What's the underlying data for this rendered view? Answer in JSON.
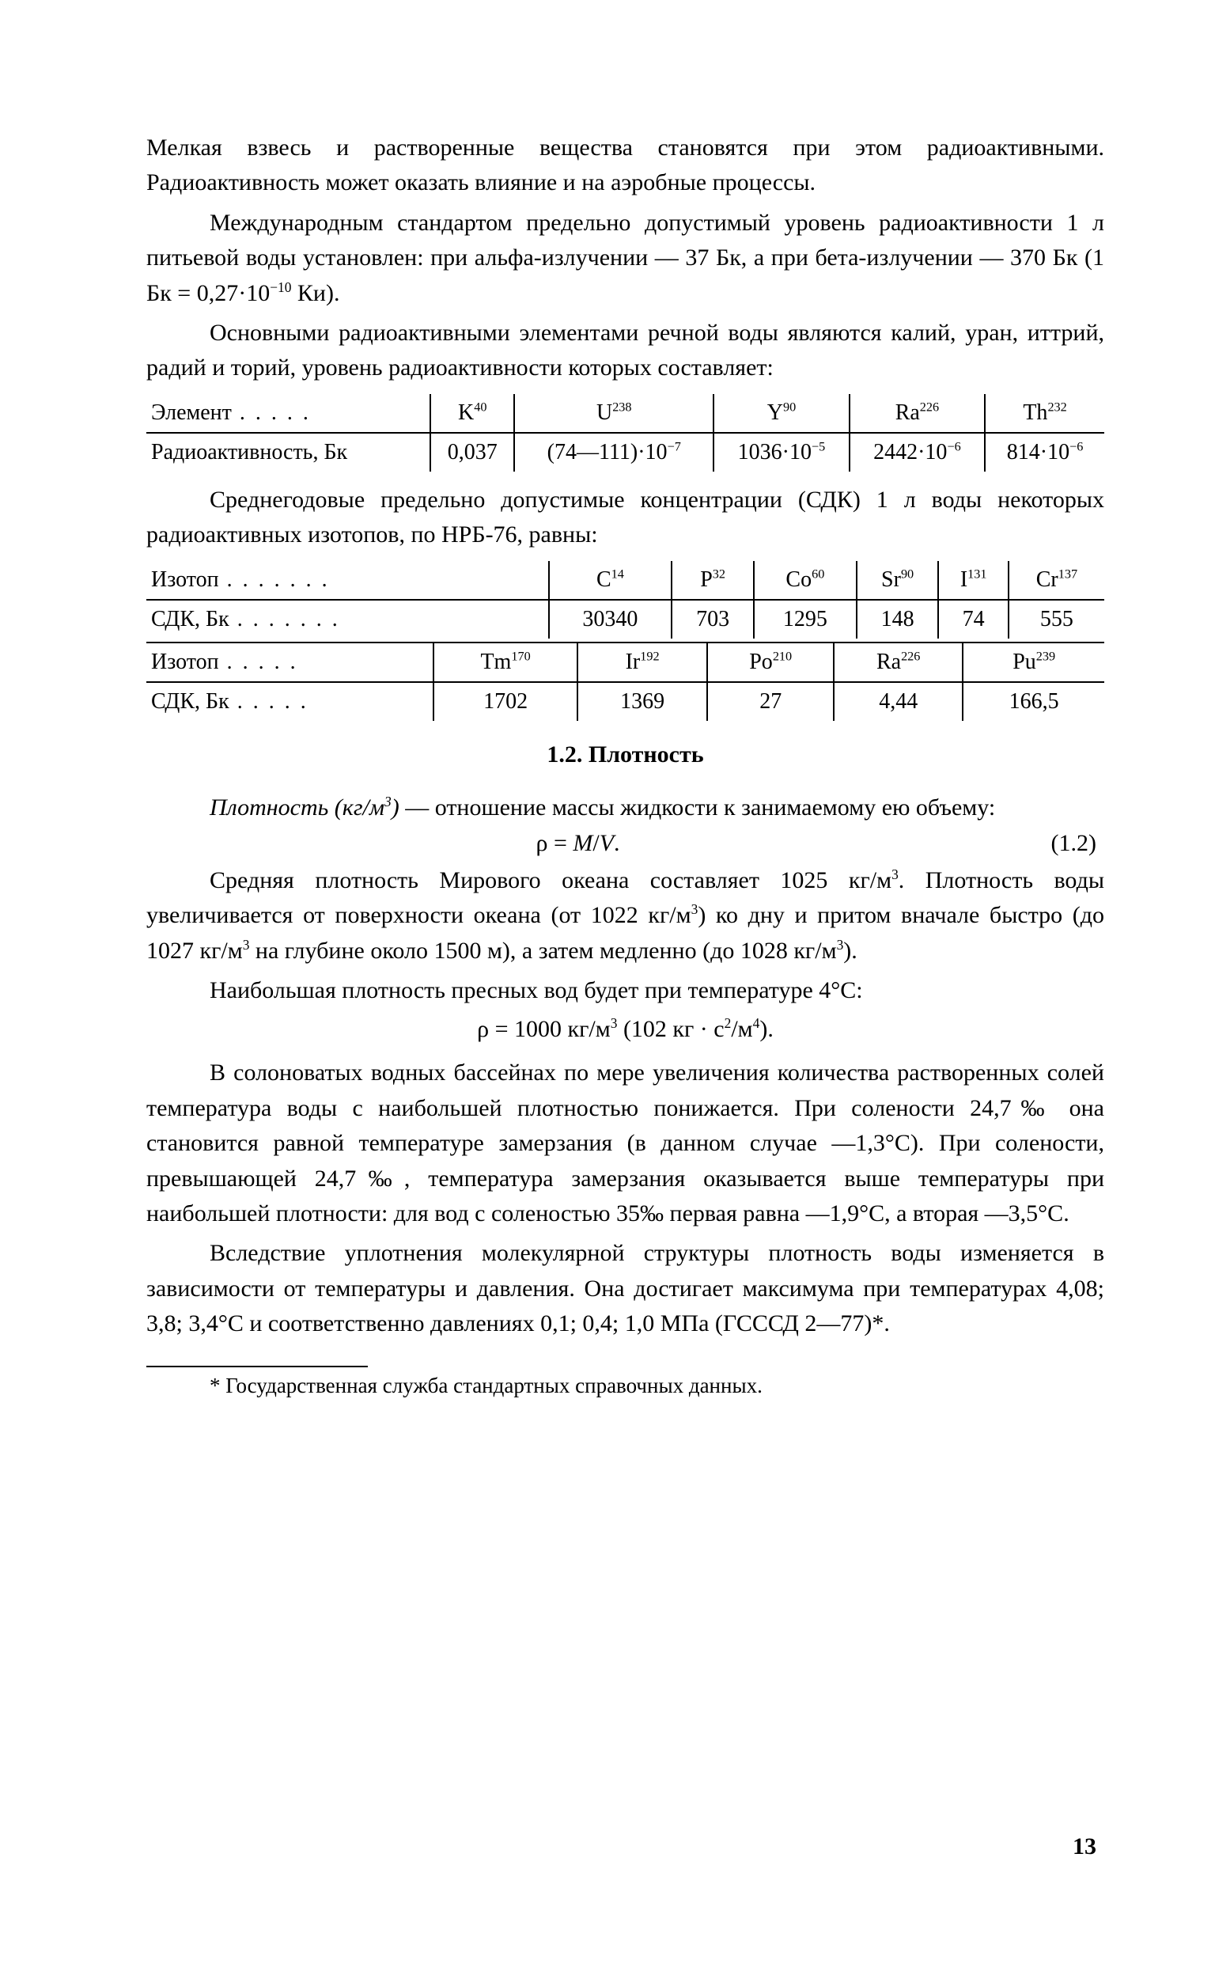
{
  "intro": {
    "para1": "Мелкая взвесь и растворенные вещества становятся при этом радиоактивными. Радиоактивность может оказать влияние и на аэробные процессы.",
    "para2_html": "Международным стандартом предельно допустимый уровень радиоактивности 1 л питьевой воды установлен: при альфа-излучении — 37 Бк, а при бета-излучении — 370 Бк (1 Бк = 0,27·10<sup>−10</sup> Ки).",
    "para3": "Основными радиоактивными элементами речной воды являются калий, уран, иттрий, радий и торий, уровень радиоактивности которых составляет:"
  },
  "table1": {
    "row_label1": "Элемент",
    "row_label2": "Радиоактивность, Бк",
    "cols_html": [
      "K<sup>40</sup>",
      "U<sup>238</sup>",
      "Y<sup>90</sup>",
      "Ra<sup>226</sup>",
      "Th<sup>232</sup>"
    ],
    "vals_html": [
      "0,037",
      "(74—111)·10<sup>−7</sup>",
      "1036·10<sup>−5</sup>",
      "2442·10<sup>−6</sup>",
      "814·10<sup>−6</sup>"
    ]
  },
  "mid": {
    "para_html": "Среднегодовые предельно допустимые концентрации (СДК) 1 л воды некоторых радиоактивных изотопов, по НРБ-76, равны:"
  },
  "table2": {
    "r1_label": "Изотоп",
    "r2_label": "СДК, Бк",
    "r1_cols_html": [
      "C<sup>14</sup>",
      "P<sup>32</sup>",
      "Co<sup>60</sup>",
      "Sr<sup>90</sup>",
      "I<sup>131</sup>",
      "Cr<sup>137</sup>"
    ],
    "r2_vals": [
      "30340",
      "703",
      "1295",
      "148",
      "74",
      "555"
    ]
  },
  "table3": {
    "r1_label": "Изотоп",
    "r2_label": "СДК, Бк",
    "r1_cols_html": [
      "Tm<sup>170</sup>",
      "Ir<sup>192</sup>",
      "Po<sup>210</sup>",
      "Ra<sup>226</sup>",
      "Pu<sup>239</sup>"
    ],
    "r2_vals": [
      "1702",
      "1369",
      "27",
      "4,44",
      "166,5"
    ]
  },
  "section": {
    "heading": "1.2. Плотность",
    "def_html": "<span class=\"italic\">Плотность (кг/м<sup>3</sup>)</span> — отношение массы жидкости к занимаемому ею объему:",
    "eq1_math_html": "ρ = <span class=\"italic\">M</span>/<span class=\"italic\">V</span>.",
    "eq1_num": "(1.2)",
    "para2_html": "Средняя плотность Мирового океана составляет 1025 кг/м<sup>3</sup>. Плотность воды увеличивается от поверхности океана (от 1022 кг/м<sup>3</sup>) ко дну и притом вначале быстро (до 1027 кг/м<sup>3</sup> на глубине около 1500 м), а затем медленно (до 1028 кг/м<sup>3</sup>).",
    "para3": "Наибольшая плотность пресных вод будет при температуре 4°С:",
    "eq2_html": "ρ = 1000 кг/м<sup>3</sup> (102 кг · с<sup>2</sup>/м<sup>4</sup>).",
    "para4_html": "В солоноватых водных бассейнах по мере увеличения количества растворенных солей температура воды с наибольшей плотностью понижается. При солености 24,7‰ она становится равной температуре замерзания (в данном случае —1,3°С). При солености, превышающей 24,7‰, температура замерзания оказывается выше температуры при наибольшей плотности: для вод с соленостью 35‰ первая равна —1,9°С, а вторая —3,5°С.",
    "para5_html": "Вследствие уплотнения молекулярной структуры плотность воды изменяется в зависимости от температуры и давления. Она достигает максимума при температурах 4,08; 3,8; 3,4°С и соответственно давлениях 0,1; 0,4; 1,0 МПа (ГСССД 2—77)*."
  },
  "footnote": "* Государственная служба стандартных справочных данных.",
  "page_number": "13"
}
